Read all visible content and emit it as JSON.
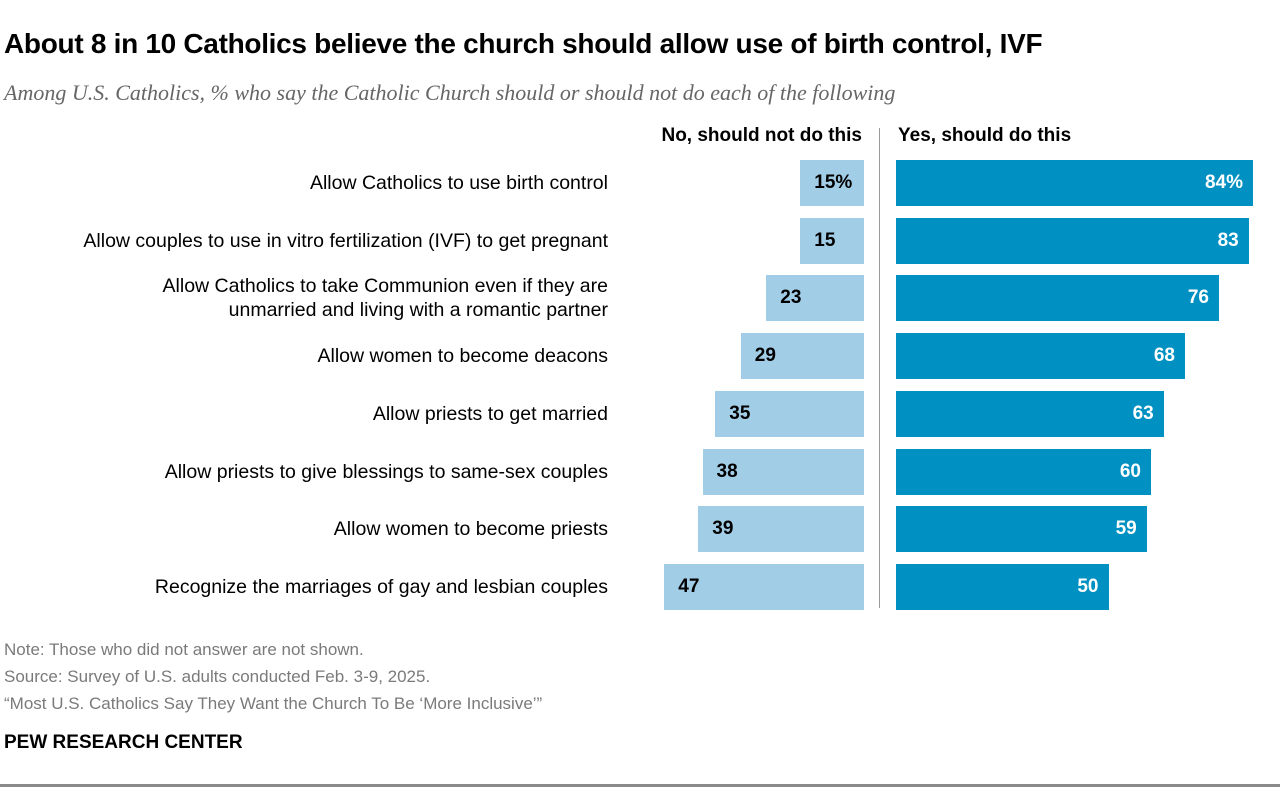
{
  "title": "About 8 in 10 Catholics believe the church should allow use of birth control, IVF",
  "subtitle": "Among U.S. Catholics, % who say the Catholic Church should or should not do each of the following",
  "chart_data": {
    "type": "bar",
    "orientation": "horizontal-diverging",
    "categories": [
      "Allow Catholics to use birth control",
      "Allow couples to use in vitro fertilization (IVF) to get pregnant",
      "Allow Catholics to take Communion even if they are\nunmarried and living with a romantic partner",
      "Allow women to become deacons",
      "Allow priests to get married",
      "Allow priests to give blessings to same-sex couples",
      "Allow women to become priests",
      "Recognize the marriages of gay and lesbian couples"
    ],
    "series": [
      {
        "name": "No, should not do this",
        "color": "#a2cde6",
        "values": [
          15,
          15,
          23,
          29,
          35,
          38,
          39,
          47
        ],
        "labels": [
          "15%",
          "15",
          "23",
          "29",
          "35",
          "38",
          "39",
          "47"
        ]
      },
      {
        "name": "Yes, should do this",
        "color": "#0090c2",
        "values": [
          84,
          83,
          76,
          68,
          63,
          60,
          59,
          50
        ],
        "labels": [
          "84%",
          "83",
          "76",
          "68",
          "63",
          "60",
          "59",
          "50"
        ]
      }
    ],
    "xlabel": "",
    "ylabel": "",
    "xlim": [
      0,
      100
    ]
  },
  "notes": {
    "note": "Note: Those who did not answer are not shown.",
    "source": "Source: Survey of U.S. adults conducted Feb. 3-9, 2025.",
    "report": "“Most U.S. Catholics Say They Want the Church To Be ‘More Inclusive’”"
  },
  "brand": "PEW RESEARCH CENTER"
}
